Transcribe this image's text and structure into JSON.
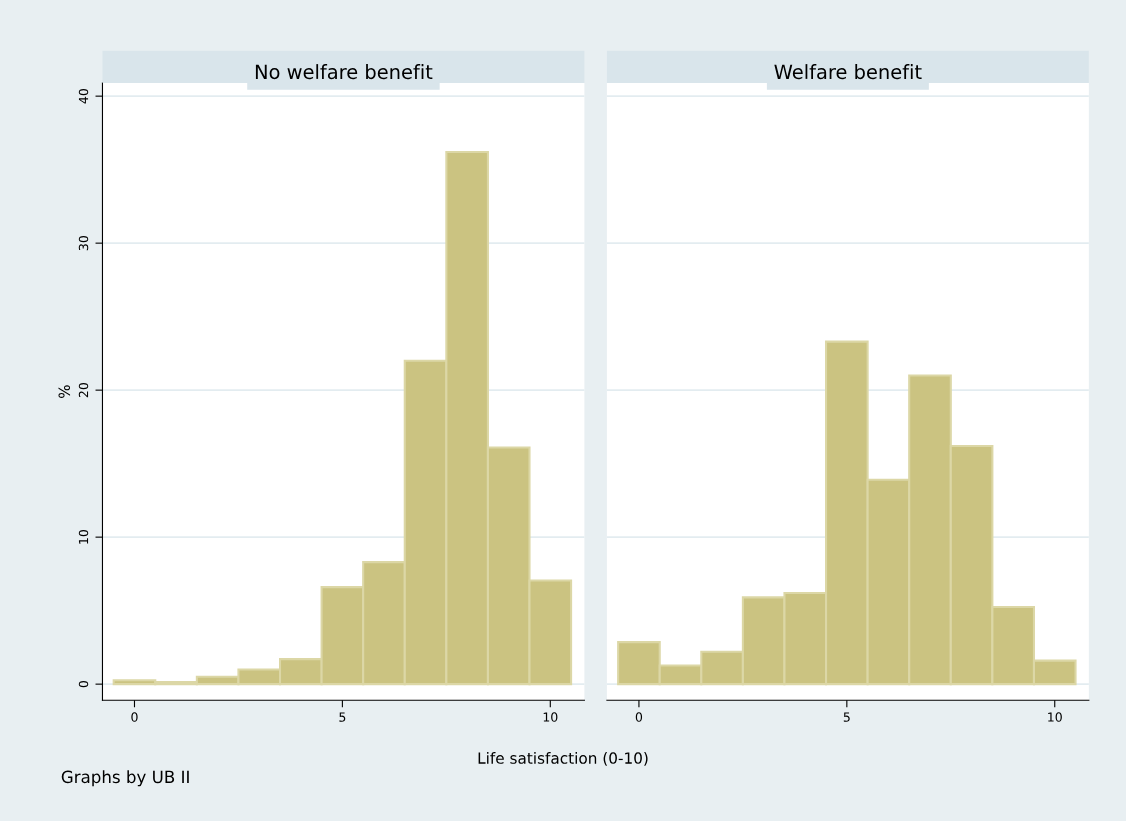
{
  "chart_data": [
    {
      "type": "histogram",
      "title": "No welfare benefit",
      "ylabel": "%",
      "xlabel": "Life satisfaction (0-10)",
      "annotations": [
        "Graphs by UB II"
      ],
      "bins": [
        -0.5,
        0.5,
        1.5,
        2.5,
        3.5,
        4.5,
        5.5,
        6.5,
        7.5,
        8.5,
        9.5,
        10.5
      ],
      "values": [
        0.27,
        0.15,
        0.5,
        1.0,
        1.7,
        6.6,
        8.3,
        22.0,
        36.2,
        16.1,
        7.05
      ],
      "color": "#cbc381",
      "xlim": [
        -0.77,
        10.82
      ],
      "xticks": [
        0,
        5,
        10
      ],
      "ylim": [
        -1.1,
        40.9
      ],
      "yticks": [
        0,
        10,
        20,
        30,
        40
      ],
      "grid": "y"
    },
    {
      "type": "histogram",
      "title": "Welfare benefit",
      "bins": [
        -0.5,
        0.5,
        1.5,
        2.5,
        3.5,
        4.5,
        5.5,
        6.5,
        7.5,
        8.5,
        9.5,
        10.5
      ],
      "values": [
        2.86,
        1.27,
        2.2,
        5.9,
        6.2,
        23.3,
        13.9,
        21.0,
        16.2,
        5.25,
        1.6
      ],
      "color": "#cbc381",
      "xlim": [
        -0.77,
        10.82
      ],
      "xticks": [
        0,
        5,
        10
      ],
      "ylim": [
        -1.1,
        40.9
      ],
      "yticks": [
        0,
        10,
        20,
        30,
        40
      ],
      "grid": "y",
      "tick_labels": "x"
    }
  ]
}
